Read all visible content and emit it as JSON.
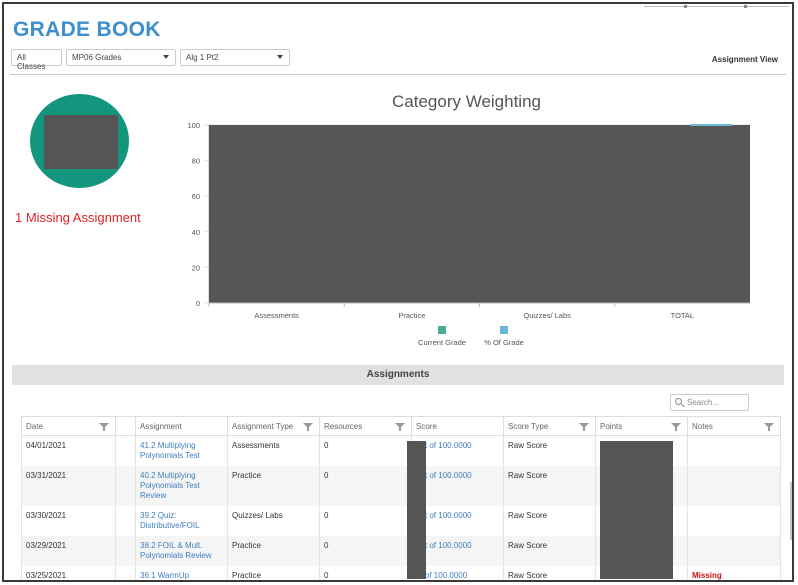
{
  "header": {
    "title": "GRADE BOOK",
    "view_label": "Assignment View"
  },
  "filters": {
    "classes": "All Classes",
    "grades": "MP06 Grades",
    "course": "Alg 1 Pt2"
  },
  "summary": {
    "missing": "1 Missing Assignment"
  },
  "chart_data": {
    "type": "bar",
    "title": "Category Weighting",
    "categories": [
      "Assessments",
      "Practice",
      "Quizzes/ Labs",
      "TOTAL"
    ],
    "yticks": [
      "0",
      "20",
      "40",
      "60",
      "80",
      "100"
    ],
    "ylim": [
      0,
      100
    ],
    "series": [
      {
        "name": "Current Grade",
        "color": "#4aaa98"
      },
      {
        "name": "% Of Grade",
        "color": "#6bb8d9"
      }
    ],
    "grid": true,
    "legend": "bottom"
  },
  "assignments": {
    "section_title": "Assignments",
    "search_placeholder": "Search...",
    "columns": [
      "Date",
      "",
      "Assignment",
      "Assignment Type",
      "Resources",
      "Score",
      "Score Type",
      "Points",
      "Notes"
    ],
    "rows": [
      {
        "date": "04/01/2021",
        "assignment": "41.2 Multiplying Polynomials Test",
        "type": "Assessments",
        "resources": "0",
        "score": "out of 100.0000",
        "score_type": "Raw Score",
        "notes": ""
      },
      {
        "date": "03/31/2021",
        "assignment": "40.2 Multiplying Polynomials Test Review",
        "type": "Practice",
        "resources": "0",
        "score": "out of 100.0000",
        "score_type": "Raw Score",
        "notes": ""
      },
      {
        "date": "03/30/2021",
        "assignment": "39.2 Quiz: Distributive/FOIL",
        "type": "Quizzes/ Labs",
        "resources": "0",
        "score": "out of 100.0000",
        "score_type": "Raw Score",
        "notes": ""
      },
      {
        "date": "03/29/2021",
        "assignment": "38.2 FOIL & Mult. Polynomials Review",
        "type": "Practice",
        "resources": "0",
        "score": "out of 100.0000",
        "score_type": "Raw Score",
        "notes": ""
      },
      {
        "date": "03/25/2021",
        "assignment": "36.1 WarmUp",
        "type": "Practice",
        "resources": "0",
        "score": "ut of 100.0000",
        "score_type": "Raw Score",
        "notes": "Missing"
      }
    ]
  }
}
